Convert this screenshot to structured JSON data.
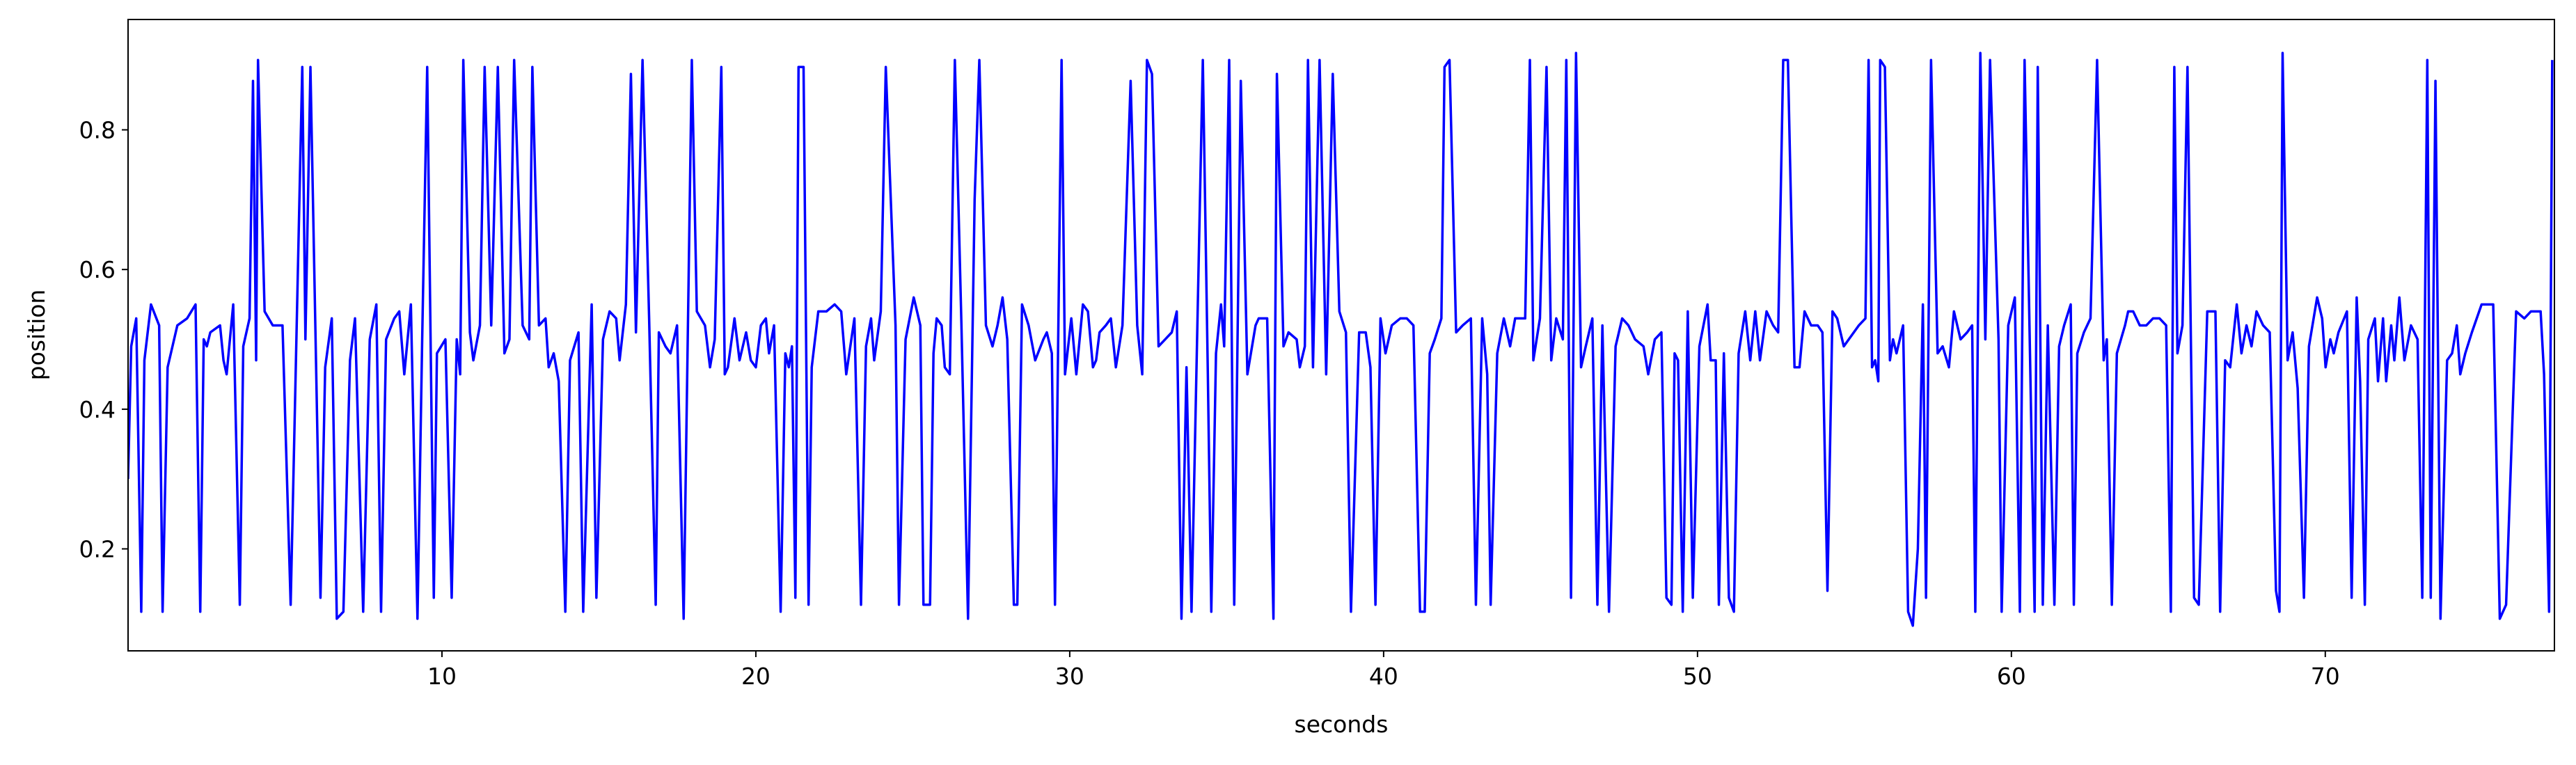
{
  "chart_data": {
    "type": "line",
    "xlabel": "seconds",
    "ylabel": "position",
    "color": "#0000ff",
    "xlim": [
      0,
      77.3
    ],
    "ylim": [
      0.054,
      0.958
    ],
    "xticks": [
      10,
      20,
      30,
      40,
      50,
      60,
      70
    ],
    "yticks": [
      0.2,
      0.4,
      0.6,
      0.8
    ],
    "grid": false,
    "x": [
      0.0,
      0.1,
      0.26,
      0.42,
      0.52,
      0.73,
      0.99,
      1.1,
      1.26,
      1.57,
      1.88,
      2.15,
      2.3,
      2.41,
      2.51,
      2.62,
      2.93,
      3.04,
      3.14,
      3.35,
      3.56,
      3.67,
      3.87,
      3.98,
      4.08,
      4.14,
      4.35,
      4.61,
      4.92,
      5.18,
      5.55,
      5.65,
      5.81,
      6.13,
      6.28,
      6.49,
      6.65,
      6.86,
      7.07,
      7.23,
      7.49,
      7.7,
      7.91,
      8.06,
      8.22,
      8.48,
      8.64,
      8.8,
      9.01,
      9.22,
      9.37,
      9.53,
      9.74,
      9.84,
      10.11,
      10.31,
      10.47,
      10.58,
      10.68,
      10.89,
      11.0,
      11.21,
      11.36,
      11.57,
      11.78,
      11.99,
      12.15,
      12.3,
      12.57,
      12.78,
      12.88,
      13.09,
      13.3,
      13.4,
      13.56,
      13.72,
      13.93,
      14.08,
      14.35,
      14.5,
      14.77,
      14.92,
      15.13,
      15.34,
      15.55,
      15.66,
      15.86,
      16.02,
      16.18,
      16.39,
      16.6,
      16.81,
      16.91,
      17.12,
      17.28,
      17.49,
      17.7,
      17.96,
      18.12,
      18.38,
      18.54,
      18.69,
      18.9,
      19.01,
      19.11,
      19.32,
      19.48,
      19.69,
      19.84,
      20.0,
      20.16,
      20.32,
      20.42,
      20.58,
      20.79,
      20.94,
      21.05,
      21.15,
      21.26,
      21.36,
      21.52,
      21.68,
      21.78,
      21.99,
      22.25,
      22.51,
      22.72,
      22.88,
      23.14,
      23.35,
      23.51,
      23.67,
      23.77,
      23.98,
      24.14,
      24.45,
      24.56,
      24.77,
      25.03,
      25.24,
      25.34,
      25.55,
      25.66,
      25.76,
      25.92,
      26.02,
      26.18,
      26.34,
      26.55,
      26.76,
      26.97,
      27.12,
      27.33,
      27.54,
      27.7,
      27.86,
      28.01,
      28.22,
      28.33,
      28.48,
      28.69,
      28.9,
      29.16,
      29.27,
      29.43,
      29.53,
      29.74,
      29.85,
      30.05,
      30.21,
      30.42,
      30.58,
      30.74,
      30.84,
      30.95,
      31.15,
      31.31,
      31.47,
      31.68,
      31.94,
      32.15,
      32.31,
      32.46,
      32.62,
      32.83,
      33.04,
      33.25,
      33.41,
      33.56,
      33.72,
      33.88,
      34.03,
      34.24,
      34.4,
      34.51,
      34.66,
      34.82,
      34.92,
      35.08,
      35.24,
      35.45,
      35.66,
      35.92,
      36.02,
      36.29,
      36.49,
      36.6,
      36.81,
      36.97,
      37.23,
      37.33,
      37.49,
      37.59,
      37.75,
      37.96,
      38.17,
      38.38,
      38.59,
      38.8,
      38.96,
      39.22,
      39.43,
      39.58,
      39.74,
      39.9,
      40.06,
      40.26,
      40.53,
      40.74,
      40.95,
      41.16,
      41.31,
      41.47,
      41.63,
      41.84,
      41.94,
      42.1,
      42.31,
      42.52,
      42.78,
      42.94,
      43.14,
      43.3,
      43.41,
      43.62,
      43.83,
      44.03,
      44.19,
      44.51,
      44.66,
      44.77,
      44.98,
      45.19,
      45.34,
      45.5,
      45.71,
      45.82,
      45.97,
      46.13,
      46.29,
      46.44,
      46.65,
      46.81,
      46.97,
      47.18,
      47.39,
      47.6,
      47.8,
      48.01,
      48.28,
      48.43,
      48.64,
      48.85,
      49.01,
      49.17,
      49.27,
      49.38,
      49.53,
      49.69,
      49.85,
      50.06,
      50.32,
      50.42,
      50.58,
      50.68,
      50.84,
      51.0,
      51.16,
      51.31,
      51.52,
      51.68,
      51.84,
      51.99,
      52.2,
      52.41,
      52.57,
      52.73,
      52.88,
      53.09,
      53.25,
      53.41,
      53.62,
      53.83,
      53.98,
      54.14,
      54.3,
      54.45,
      54.66,
      54.82,
      55.14,
      55.35,
      55.45,
      55.56,
      55.66,
      55.76,
      55.82,
      55.97,
      56.13,
      56.23,
      56.34,
      56.55,
      56.71,
      56.86,
      57.02,
      57.18,
      57.28,
      57.44,
      57.65,
      57.81,
      58.01,
      58.17,
      58.38,
      58.59,
      58.75,
      58.85,
      59.01,
      59.17,
      59.32,
      59.59,
      59.69,
      59.9,
      60.11,
      60.27,
      60.42,
      60.58,
      60.74,
      60.84,
      61.0,
      61.16,
      61.37,
      61.52,
      61.68,
      61.89,
      61.99,
      62.1,
      62.31,
      62.52,
      62.73,
      62.94,
      63.04,
      63.2,
      63.36,
      63.62,
      63.72,
      63.88,
      64.09,
      64.3,
      64.51,
      64.72,
      64.93,
      65.08,
      65.19,
      65.29,
      65.45,
      65.61,
      65.82,
      65.97,
      66.24,
      66.5,
      66.65,
      66.81,
      66.97,
      67.18,
      67.33,
      67.49,
      67.65,
      67.81,
      68.02,
      68.23,
      68.43,
      68.54,
      68.64,
      68.8,
      68.96,
      69.12,
      69.32,
      69.48,
      69.74,
      69.9,
      70.01,
      70.16,
      70.27,
      70.42,
      70.69,
      70.84,
      71.0,
      71.11,
      71.26,
      71.37,
      71.58,
      71.68,
      71.84,
      71.94,
      72.1,
      72.2,
      72.36,
      72.52,
      72.73,
      72.94,
      73.09,
      73.25,
      73.36,
      73.51,
      73.67,
      73.88,
      74.04,
      74.19,
      74.3,
      74.46,
      74.67,
      74.98,
      75.35,
      75.56,
      75.76,
      76.08,
      76.34,
      76.55,
      76.86,
      76.97,
      77.13,
      77.23
    ],
    "values": [
      0.3,
      0.49,
      0.53,
      0.11,
      0.47,
      0.55,
      0.52,
      0.11,
      0.46,
      0.52,
      0.53,
      0.55,
      0.11,
      0.5,
      0.49,
      0.51,
      0.52,
      0.47,
      0.45,
      0.55,
      0.12,
      0.49,
      0.53,
      0.87,
      0.47,
      0.9,
      0.54,
      0.52,
      0.52,
      0.12,
      0.89,
      0.5,
      0.89,
      0.13,
      0.46,
      0.53,
      0.1,
      0.11,
      0.47,
      0.53,
      0.11,
      0.5,
      0.55,
      0.11,
      0.5,
      0.53,
      0.54,
      0.45,
      0.55,
      0.1,
      0.5,
      0.89,
      0.13,
      0.48,
      0.5,
      0.13,
      0.5,
      0.45,
      0.9,
      0.51,
      0.47,
      0.52,
      0.89,
      0.52,
      0.89,
      0.48,
      0.5,
      0.9,
      0.52,
      0.5,
      0.89,
      0.52,
      0.53,
      0.46,
      0.48,
      0.44,
      0.11,
      0.47,
      0.51,
      0.11,
      0.55,
      0.13,
      0.5,
      0.54,
      0.53,
      0.47,
      0.55,
      0.88,
      0.51,
      0.9,
      0.53,
      0.12,
      0.51,
      0.49,
      0.48,
      0.52,
      0.1,
      0.9,
      0.54,
      0.52,
      0.46,
      0.5,
      0.89,
      0.45,
      0.46,
      0.53,
      0.47,
      0.51,
      0.47,
      0.46,
      0.52,
      0.53,
      0.48,
      0.52,
      0.11,
      0.48,
      0.46,
      0.49,
      0.13,
      0.89,
      0.89,
      0.12,
      0.46,
      0.54,
      0.54,
      0.55,
      0.54,
      0.45,
      0.53,
      0.12,
      0.49,
      0.53,
      0.47,
      0.54,
      0.89,
      0.52,
      0.12,
      0.5,
      0.56,
      0.52,
      0.12,
      0.12,
      0.48,
      0.53,
      0.52,
      0.46,
      0.45,
      0.9,
      0.52,
      0.1,
      0.7,
      0.9,
      0.52,
      0.49,
      0.52,
      0.56,
      0.5,
      0.12,
      0.12,
      0.55,
      0.52,
      0.47,
      0.5,
      0.51,
      0.48,
      0.12,
      0.9,
      0.45,
      0.53,
      0.45,
      0.55,
      0.54,
      0.46,
      0.47,
      0.51,
      0.52,
      0.53,
      0.46,
      0.52,
      0.87,
      0.52,
      0.45,
      0.9,
      0.88,
      0.49,
      0.5,
      0.51,
      0.54,
      0.1,
      0.46,
      0.11,
      0.44,
      0.9,
      0.45,
      0.11,
      0.48,
      0.55,
      0.49,
      0.9,
      0.12,
      0.87,
      0.45,
      0.52,
      0.53,
      0.53,
      0.1,
      0.88,
      0.49,
      0.51,
      0.5,
      0.46,
      0.49,
      0.9,
      0.46,
      0.9,
      0.45,
      0.88,
      0.54,
      0.51,
      0.11,
      0.51,
      0.51,
      0.46,
      0.12,
      0.53,
      0.48,
      0.52,
      0.53,
      0.53,
      0.52,
      0.11,
      0.11,
      0.48,
      0.5,
      0.53,
      0.89,
      0.9,
      0.51,
      0.52,
      0.53,
      0.12,
      0.53,
      0.45,
      0.12,
      0.48,
      0.53,
      0.49,
      0.53,
      0.53,
      0.9,
      0.47,
      0.53,
      0.89,
      0.47,
      0.53,
      0.5,
      0.9,
      0.13,
      0.91,
      0.46,
      0.49,
      0.53,
      0.12,
      0.52,
      0.11,
      0.49,
      0.53,
      0.52,
      0.5,
      0.49,
      0.45,
      0.5,
      0.51,
      0.13,
      0.12,
      0.48,
      0.47,
      0.11,
      0.54,
      0.13,
      0.49,
      0.55,
      0.47,
      0.47,
      0.12,
      0.48,
      0.13,
      0.11,
      0.48,
      0.54,
      0.47,
      0.54,
      0.47,
      0.54,
      0.52,
      0.51,
      0.9,
      0.9,
      0.46,
      0.46,
      0.54,
      0.52,
      0.52,
      0.51,
      0.14,
      0.54,
      0.53,
      0.49,
      0.5,
      0.52,
      0.53,
      0.9,
      0.46,
      0.47,
      0.44,
      0.9,
      0.89,
      0.47,
      0.5,
      0.48,
      0.52,
      0.11,
      0.09,
      0.2,
      0.55,
      0.13,
      0.9,
      0.48,
      0.49,
      0.46,
      0.54,
      0.5,
      0.51,
      0.52,
      0.11,
      0.91,
      0.5,
      0.9,
      0.5,
      0.11,
      0.52,
      0.56,
      0.11,
      0.9,
      0.51,
      0.11,
      0.89,
      0.12,
      0.52,
      0.12,
      0.49,
      0.52,
      0.55,
      0.12,
      0.48,
      0.51,
      0.53,
      0.9,
      0.47,
      0.5,
      0.12,
      0.48,
      0.52,
      0.54,
      0.54,
      0.52,
      0.52,
      0.53,
      0.53,
      0.52,
      0.11,
      0.89,
      0.48,
      0.52,
      0.89,
      0.13,
      0.12,
      0.54,
      0.54,
      0.11,
      0.47,
      0.46,
      0.55,
      0.48,
      0.52,
      0.49,
      0.54,
      0.52,
      0.51,
      0.14,
      0.11,
      0.91,
      0.47,
      0.51,
      0.43,
      0.13,
      0.49,
      0.56,
      0.53,
      0.46,
      0.5,
      0.48,
      0.51,
      0.54,
      0.13,
      0.56,
      0.44,
      0.12,
      0.5,
      0.53,
      0.44,
      0.53,
      0.44,
      0.52,
      0.47,
      0.56,
      0.47,
      0.52,
      0.5,
      0.13,
      0.9,
      0.13,
      0.87,
      0.1,
      0.47,
      0.48,
      0.52,
      0.45,
      0.48,
      0.51,
      0.55,
      0.55,
      0.1,
      0.12,
      0.54,
      0.53,
      0.54,
      0.54,
      0.45,
      0.11,
      0.9
    ]
  }
}
